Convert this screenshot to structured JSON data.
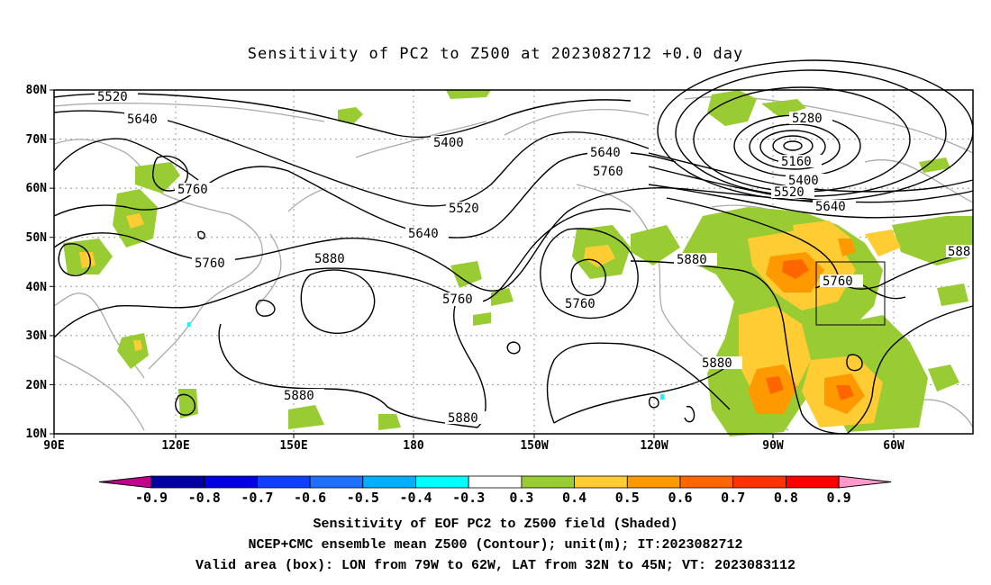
{
  "title": "Sensitivity of PC2 to Z500 at 2023082712 +0.0 day",
  "lat_labels": [
    "80N",
    "70N",
    "60N",
    "50N",
    "40N",
    "30N",
    "20N",
    "10N"
  ],
  "lon_labels": [
    "90E",
    "120E",
    "150E",
    "180",
    "150W",
    "120W",
    "90W",
    "60W"
  ],
  "contour_labels": [
    "5520",
    "5640",
    "5400",
    "5280",
    "5160",
    "5400",
    "5520",
    "5640",
    "5640",
    "5760",
    "5520",
    "5760",
    "5640",
    "5760",
    "5880",
    "5760",
    "5760",
    "5880",
    "5760",
    "5880",
    "5880",
    "5880",
    "588"
  ],
  "colorbar": {
    "labels": [
      "-0.9",
      "-0.8",
      "-0.7",
      "-0.6",
      "-0.5",
      "-0.4",
      "-0.3",
      "0.3",
      "0.4",
      "0.5",
      "0.6",
      "0.7",
      "0.8",
      "0.9"
    ],
    "colors": [
      "#0000a0",
      "#0000e0",
      "#1040ff",
      "#2070ff",
      "#00b0ff",
      "#00ffff",
      "#ffffff",
      "#99cc33",
      "#ffcc33",
      "#ff9900",
      "#ff6600",
      "#ff3300",
      "#ff0000"
    ],
    "low_end_color": "#c0008a",
    "high_end_color": "#ff99cc"
  },
  "captions": [
    "Sensitivity of EOF PC2 to Z500 field (Shaded)",
    "NCEP+CMC ensemble mean Z500 (Contour); unit(m); IT:2023082712",
    "Valid area (box): LON from 79W to 62W, LAT from 32N to 45N; VT: 2023083112"
  ]
}
